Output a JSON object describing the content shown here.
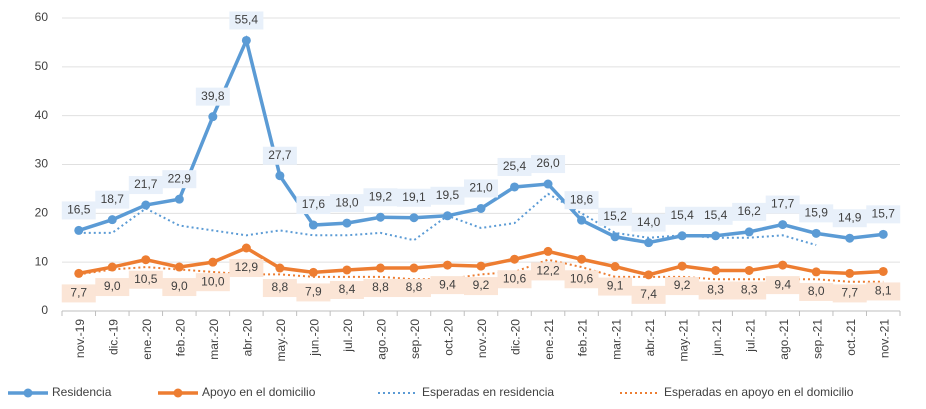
{
  "chart_data": {
    "type": "line",
    "categories": [
      "nov.-19",
      "dic.-19",
      "ene.-20",
      "feb.-20",
      "mar.-20",
      "abr.-20",
      "may.-20",
      "jun.-20",
      "jul.-20",
      "ago.-20",
      "sep.-20",
      "oct.-20",
      "nov.-20",
      "dic.-20",
      "ene.-21",
      "feb.-21",
      "mar.-21",
      "abr.-21",
      "may.-21",
      "jun.-21",
      "jul.-21",
      "ago.-21",
      "sep.-21",
      "oct.-21",
      "nov.-21"
    ],
    "series": [
      {
        "name": "Residencia",
        "color": "#5b9bd5",
        "style": "solid",
        "values": [
          16.5,
          18.7,
          21.7,
          22.9,
          39.8,
          55.4,
          27.7,
          17.6,
          18.0,
          19.2,
          19.1,
          19.5,
          21.0,
          25.4,
          26.0,
          18.6,
          15.2,
          14.0,
          15.4,
          15.4,
          16.2,
          17.7,
          15.9,
          14.9,
          15.7
        ],
        "value_labels": [
          "16,5",
          "18,7",
          "21,7",
          "22,9",
          "39,8",
          "55,4",
          "27,7",
          "17,6",
          "18,0",
          "19,2",
          "19,1",
          "19,5",
          "21,0",
          "25,4",
          "26,0",
          "18,6",
          "15,2",
          "14,0",
          "15,4",
          "15,4",
          "16,2",
          "17,7",
          "15,9",
          "14,9",
          "15,7"
        ]
      },
      {
        "name": "Apoyo en el domicilio",
        "color": "#ed7d31",
        "style": "solid",
        "values": [
          7.7,
          9.0,
          10.5,
          9.0,
          10.0,
          12.9,
          8.8,
          7.9,
          8.4,
          8.8,
          8.8,
          9.4,
          9.2,
          10.6,
          12.2,
          10.6,
          9.1,
          7.4,
          9.2,
          8.3,
          8.3,
          9.4,
          8.0,
          7.7,
          8.1
        ],
        "value_labels": [
          "7,7",
          "9,0",
          "10,5",
          "9,0",
          "10,0",
          "12,9",
          "8,8",
          "7,9",
          "8,4",
          "8,8",
          "8,8",
          "9,4",
          "9,2",
          "10,6",
          "12,2",
          "10,6",
          "9,1",
          "7,4",
          "9,2",
          "8,3",
          "8,3",
          "9,4",
          "8,0",
          "7,7",
          "8,1"
        ]
      },
      {
        "name": "Esperadas en residencia",
        "color": "#5b9bd5",
        "style": "dotted",
        "values": [
          16,
          16,
          21,
          17.5,
          16.5,
          15.5,
          16.5,
          15.5,
          15.5,
          16,
          14.5,
          19.5,
          17,
          18,
          24,
          20,
          16,
          15,
          15.5,
          15,
          15,
          15.5,
          13.5,
          null,
          null
        ]
      },
      {
        "name": "Esperadas en apoyo en el domicilio",
        "color": "#ed7d31",
        "style": "dotted",
        "values": [
          7.5,
          8.5,
          9,
          8.5,
          8,
          7.5,
          7.5,
          7,
          7,
          7,
          6.5,
          6.5,
          7.5,
          8,
          10.5,
          9,
          7,
          7,
          7,
          6.5,
          6.5,
          6.5,
          6.5,
          6,
          6
        ]
      }
    ],
    "ylim": [
      0,
      60
    ],
    "yticks": [
      0,
      10,
      20,
      30,
      40,
      50,
      60
    ]
  }
}
